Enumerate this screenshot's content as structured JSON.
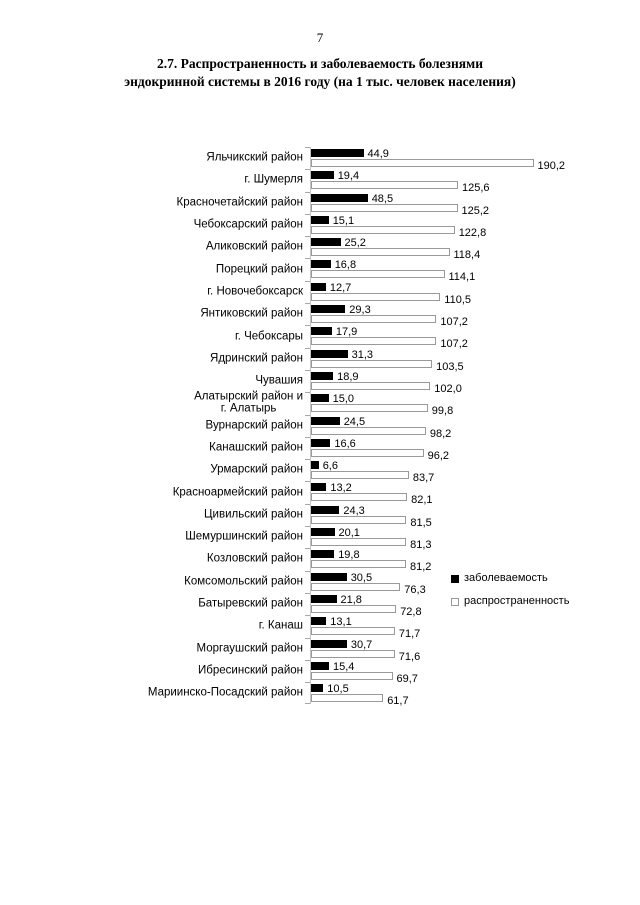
{
  "page": {
    "number": "7"
  },
  "title": {
    "line1": "2.7. Распространенность и заболеваемость болезнями",
    "line2": "эндокринной системы в 2016 году (на 1 тыс. человек населения)"
  },
  "legend": [
    {
      "label": "заболеваемость",
      "swatch_icon": "filled-square-icon",
      "color": "#000000"
    },
    {
      "label": "распространенность",
      "swatch_icon": "outline-square-icon",
      "color": "#ffffff"
    }
  ],
  "colors": {
    "incidence_bar": "#000000",
    "prevalence_bar_fill": "#ffffff",
    "prevalence_bar_border": "#999999",
    "axis": "#a8a8a8",
    "text": "#000000",
    "background": "#ffffff"
  },
  "chart_data": {
    "type": "bar",
    "orientation": "horizontal",
    "title": "2.7. Распространенность и заболеваемость болезнями эндокринной системы в 2016 году (на 1 тыс. человек населения)",
    "xlabel": "",
    "ylabel": "",
    "xlim": [
      0,
      200
    ],
    "grid": false,
    "legend_position": "right-middle",
    "decimal_separator": ",",
    "categories": [
      "Яльчикский район",
      "г. Шумерля",
      "Красночетайский район",
      "Чебоксарский район",
      "Аликовский район",
      "Порецкий район",
      "г. Новочебоксарск",
      "Янтиковский район",
      "г. Чебоксары",
      "Ядринский район",
      "Чувашия",
      "Алатырский район  и\nг. Алатырь",
      "Вурнарский район",
      "Канашский район",
      "Урмарский район",
      "Красноармейский район",
      "Цивильский район",
      "Шемуршинский район",
      "Козловский район",
      "Комсомольский район",
      "Батыревский район",
      "г. Канаш",
      "Моргаушский район",
      "Ибресинский район",
      "Мариинско-Посадский район"
    ],
    "series": [
      {
        "name": "заболеваемость",
        "values": [
          44.9,
          19.4,
          48.5,
          15.1,
          25.2,
          16.8,
          12.7,
          29.3,
          17.9,
          31.3,
          18.9,
          15.0,
          24.5,
          16.6,
          6.6,
          13.2,
          24.3,
          20.1,
          19.8,
          30.5,
          21.8,
          13.1,
          30.7,
          15.4,
          10.5
        ]
      },
      {
        "name": "распространенность",
        "values": [
          190.2,
          125.6,
          125.2,
          122.8,
          118.4,
          114.1,
          110.5,
          107.2,
          107.2,
          103.5,
          102.0,
          99.8,
          98.2,
          96.2,
          83.7,
          82.1,
          81.5,
          81.3,
          81.2,
          76.3,
          72.8,
          71.7,
          71.6,
          69.7,
          61.7
        ]
      }
    ]
  }
}
